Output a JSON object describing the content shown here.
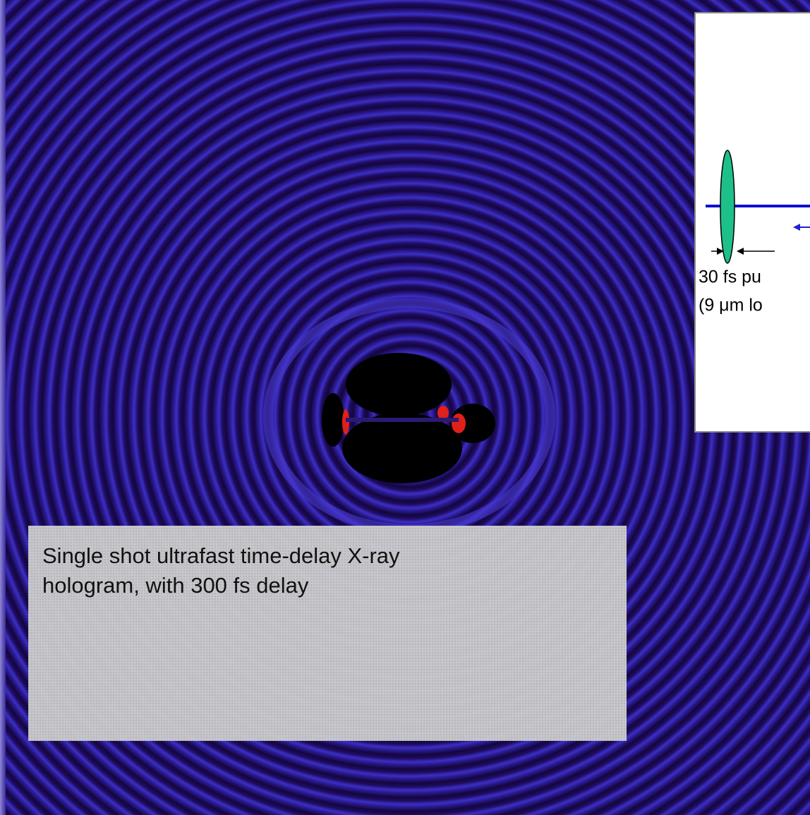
{
  "inset": {
    "label_lines": [
      "30 fs pu",
      "(9 μm lo"
    ]
  },
  "caption": {
    "lines": [
      "Single shot ultrafast time-delay X-ray",
      "hologram, with 300 fs delay"
    ]
  }
}
